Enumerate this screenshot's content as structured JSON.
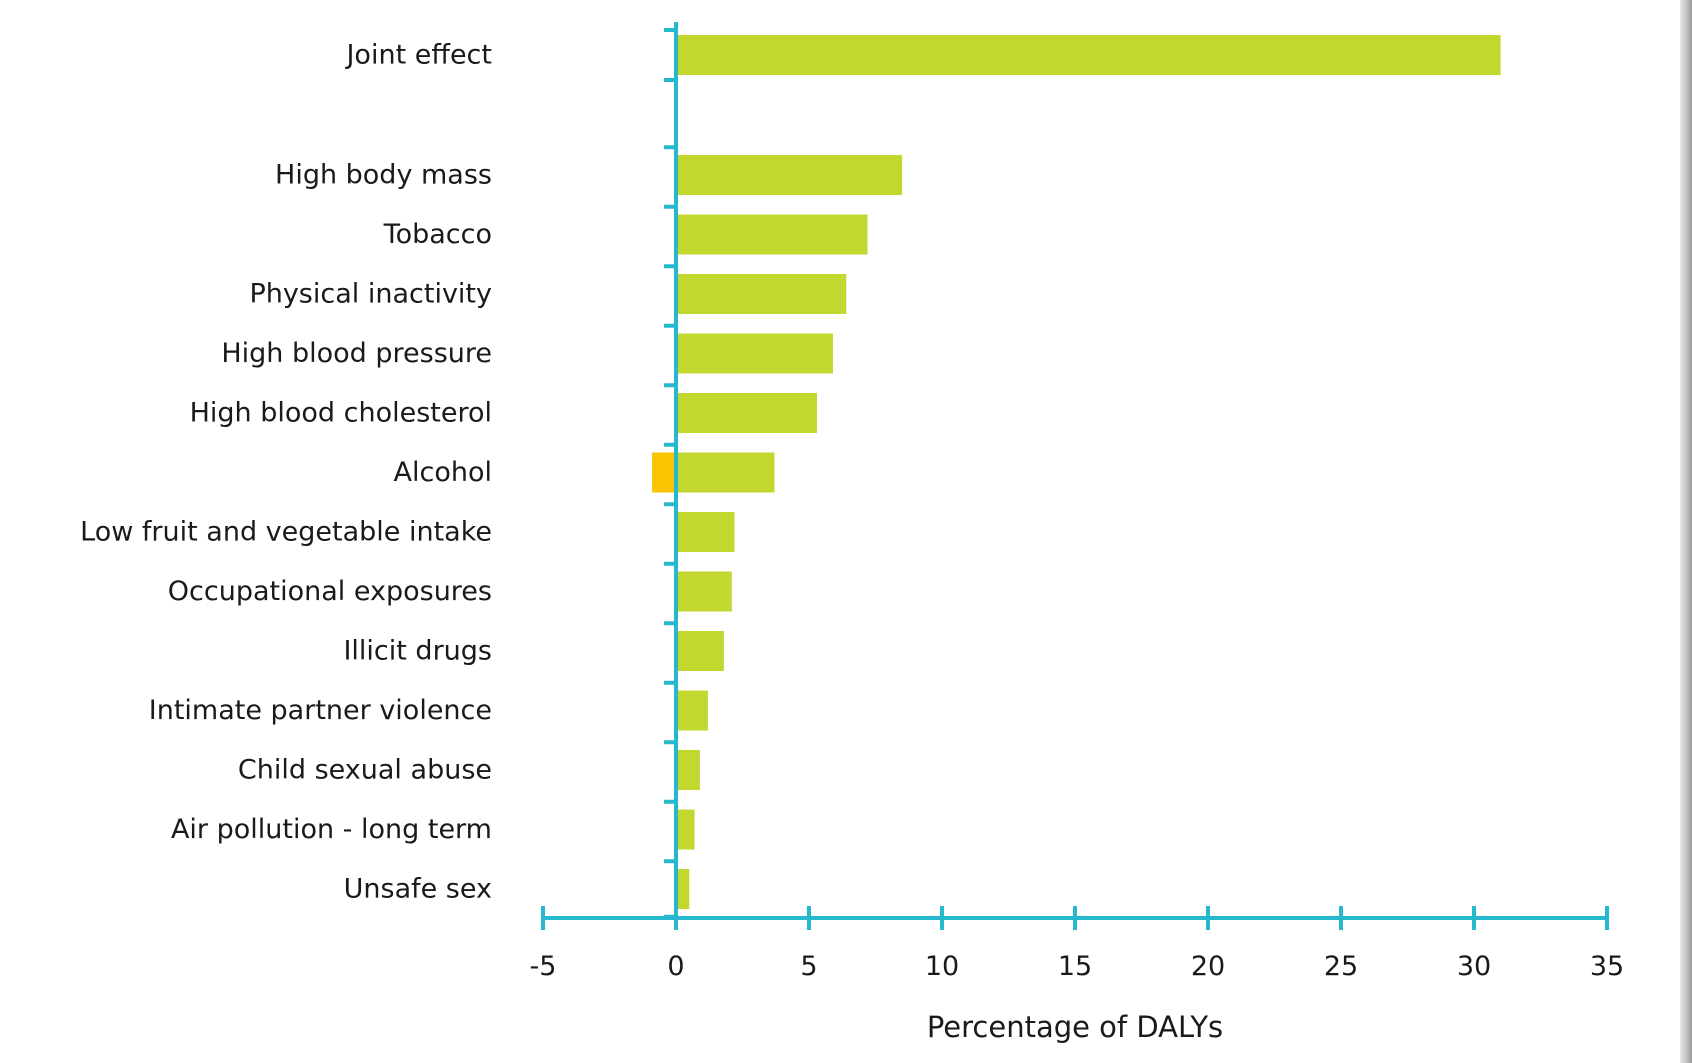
{
  "chart_data": {
    "type": "bar",
    "orientation": "horizontal",
    "xlabel": "Percentage of DALYs",
    "xlim": [
      -5,
      35
    ],
    "xticks": [
      "-5",
      "0",
      "5",
      "10",
      "15",
      "20",
      "25",
      "30",
      "35"
    ],
    "grid": false,
    "colors": {
      "positive": "#c2d82f",
      "negative": "#fbc402",
      "axis": "#26b8cc"
    },
    "categories": [
      "Joint effect",
      "High body mass",
      "Tobacco",
      "Physical inactivity",
      "High blood pressure",
      "High blood cholesterol",
      "Alcohol",
      "Low fruit and vegetable intake",
      "Occupational exposures",
      "Illicit drugs",
      "Intimate partner violence",
      "Child sexual abuse",
      "Air pollution - long term",
      "Unsafe sex"
    ],
    "values": [
      31.0,
      8.5,
      7.2,
      6.4,
      5.9,
      5.3,
      3.7,
      2.2,
      2.1,
      1.8,
      1.2,
      0.9,
      0.7,
      0.5
    ],
    "negative_values": [
      null,
      null,
      null,
      null,
      null,
      null,
      -0.9,
      null,
      null,
      null,
      null,
      null,
      null,
      null
    ]
  }
}
